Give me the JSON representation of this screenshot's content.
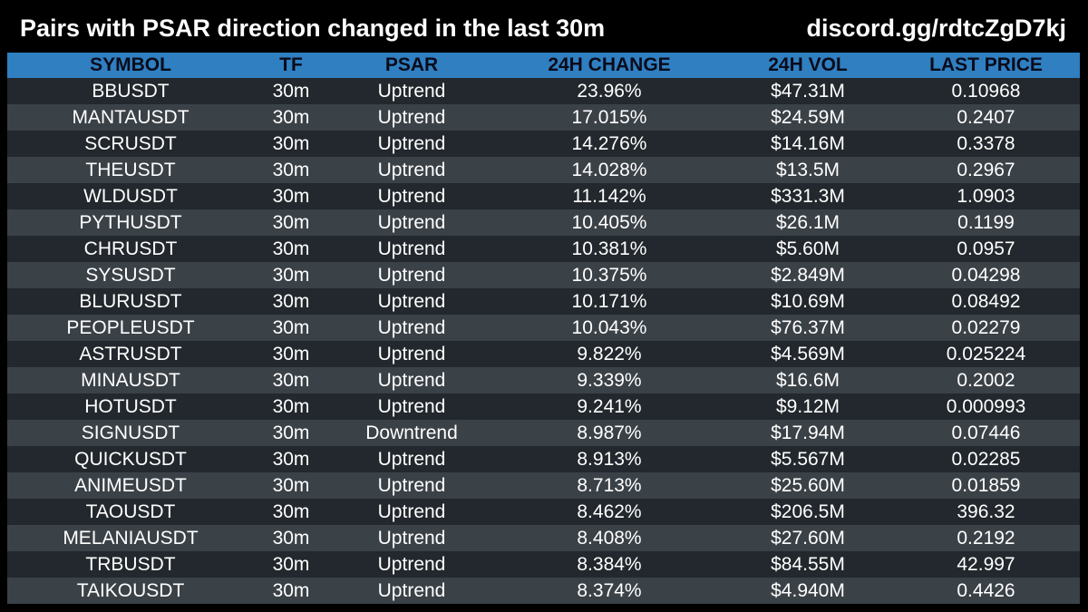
{
  "header": {
    "title": "Pairs with PSAR direction changed in the last 30m",
    "link": "discord.gg/rdtcZgD7kj"
  },
  "table": {
    "columns": [
      "SYMBOL",
      "TF",
      "PSAR",
      "24H CHANGE",
      "24H VOL",
      "LAST PRICE"
    ],
    "rows": [
      [
        "BBUSDT",
        "30m",
        "Uptrend",
        "23.96%",
        "$47.31M",
        "0.10968"
      ],
      [
        "MANTAUSDT",
        "30m",
        "Uptrend",
        "17.015%",
        "$24.59M",
        "0.2407"
      ],
      [
        "SCRUSDT",
        "30m",
        "Uptrend",
        "14.276%",
        "$14.16M",
        "0.3378"
      ],
      [
        "THEUSDT",
        "30m",
        "Uptrend",
        "14.028%",
        "$13.5M",
        "0.2967"
      ],
      [
        "WLDUSDT",
        "30m",
        "Uptrend",
        "11.142%",
        "$331.3M",
        "1.0903"
      ],
      [
        "PYTHUSDT",
        "30m",
        "Uptrend",
        "10.405%",
        "$26.1M",
        "0.1199"
      ],
      [
        "CHRUSDT",
        "30m",
        "Uptrend",
        "10.381%",
        "$5.60M",
        "0.0957"
      ],
      [
        "SYSUSDT",
        "30m",
        "Uptrend",
        "10.375%",
        "$2.849M",
        "0.04298"
      ],
      [
        "BLURUSDT",
        "30m",
        "Uptrend",
        "10.171%",
        "$10.69M",
        "0.08492"
      ],
      [
        "PEOPLEUSDT",
        "30m",
        "Uptrend",
        "10.043%",
        "$76.37M",
        "0.02279"
      ],
      [
        "ASTRUSDT",
        "30m",
        "Uptrend",
        "9.822%",
        "$4.569M",
        "0.025224"
      ],
      [
        "MINAUSDT",
        "30m",
        "Uptrend",
        "9.339%",
        "$16.6M",
        "0.2002"
      ],
      [
        "HOTUSDT",
        "30m",
        "Uptrend",
        "9.241%",
        "$9.12M",
        "0.000993"
      ],
      [
        "SIGNUSDT",
        "30m",
        "Downtrend",
        "8.987%",
        "$17.94M",
        "0.07446"
      ],
      [
        "QUICKUSDT",
        "30m",
        "Uptrend",
        "8.913%",
        "$5.567M",
        "0.02285"
      ],
      [
        "ANIMEUSDT",
        "30m",
        "Uptrend",
        "8.713%",
        "$25.60M",
        "0.01859"
      ],
      [
        "TAOUSDT",
        "30m",
        "Uptrend",
        "8.462%",
        "$206.5M",
        "396.32"
      ],
      [
        "MELANIAUSDT",
        "30m",
        "Uptrend",
        "8.408%",
        "$27.60M",
        "0.2192"
      ],
      [
        "TRBUSDT",
        "30m",
        "Uptrend",
        "8.384%",
        "$84.55M",
        "42.997"
      ],
      [
        "TAIKOUSDT",
        "30m",
        "Uptrend",
        "8.374%",
        "$4.940M",
        "0.4426"
      ]
    ]
  },
  "colors": {
    "background": "#000000",
    "header_row": "#2f7fc1",
    "row_dark": "#22282d",
    "row_light": "#3a4147",
    "text": "#ffffff",
    "header_text": "#0b0b1a"
  }
}
